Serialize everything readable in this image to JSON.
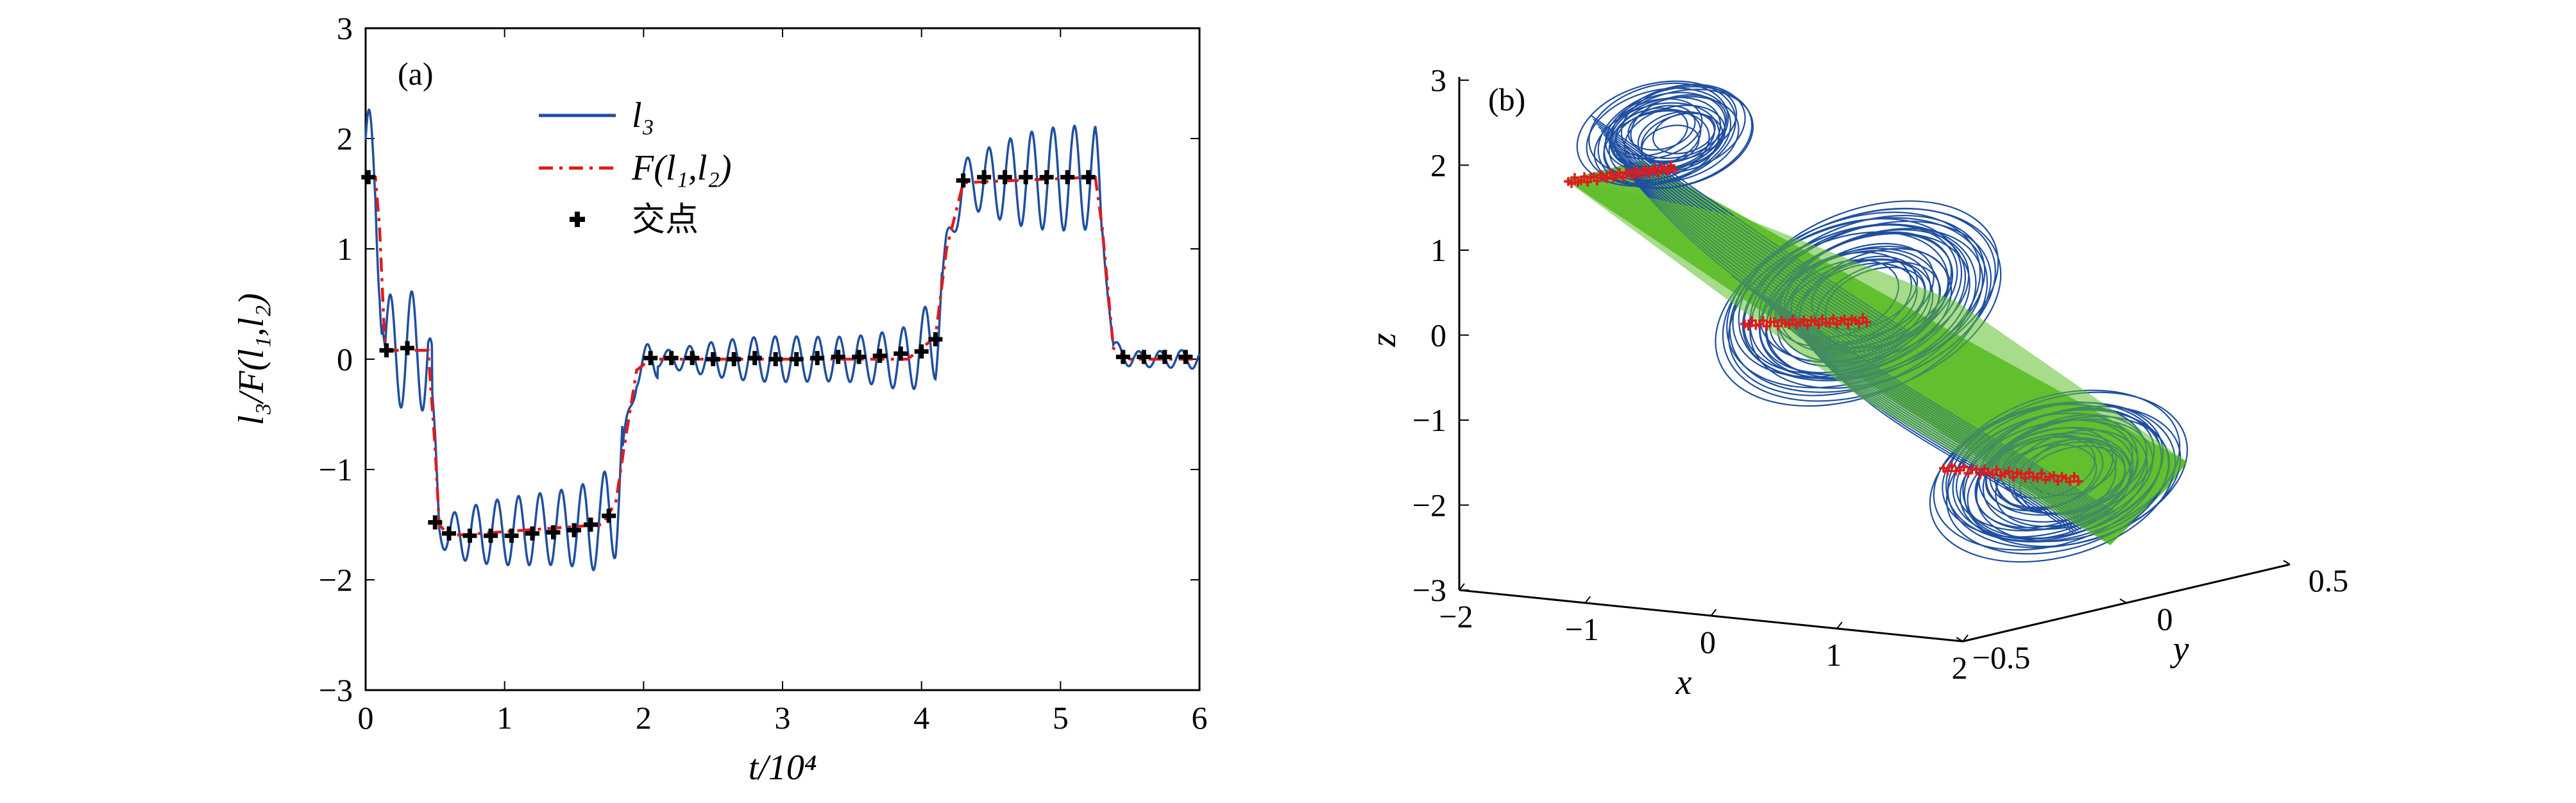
{
  "chart_data": [
    {
      "panel_label": "(a)",
      "type": "line",
      "xlabel": "t/10⁴",
      "ylabel": "l₃/F(l₁,l₂)",
      "xlim": [
        0,
        6
      ],
      "ylim": [
        -3,
        3
      ],
      "x_ticks": [
        "0",
        "1",
        "2",
        "3",
        "4",
        "5",
        "6"
      ],
      "y_ticks": [
        "3",
        "2",
        "1",
        "0",
        "−1",
        "−2",
        "−3"
      ],
      "legend": [
        "l₃",
        "F(l₁,l₂)",
        "交点"
      ],
      "colors": {
        "l3": "#1f4fa0",
        "F": "#e01b1b",
        "points": "#000000"
      },
      "series": [
        {
          "name": "F(l₁,l₂)",
          "style": "dash-dot",
          "x": [
            0,
            0.07,
            0.1,
            0.14,
            0.2,
            0.45,
            0.5,
            0.53,
            0.6,
            1.7,
            1.8,
            1.86,
            1.95,
            2.05,
            3.9,
            4.1,
            4.18,
            4.3,
            5.25,
            5.3,
            5.38,
            5.5,
            6.0
          ],
          "y": [
            1.65,
            1.65,
            1.2,
            0.1,
            0.08,
            0.08,
            -0.8,
            -1.5,
            -1.6,
            -1.5,
            -1.3,
            -0.8,
            -0.1,
            0.0,
            0.0,
            0.2,
            1.0,
            1.6,
            1.65,
            1.2,
            0.1,
            0.0,
            0.0
          ]
        },
        {
          "name": "交点",
          "style": "markers",
          "x": [
            0.02,
            0.15,
            0.3,
            0.5,
            0.6,
            0.75,
            0.9,
            1.05,
            1.2,
            1.35,
            1.5,
            1.62,
            1.75,
            2.05,
            2.2,
            2.35,
            2.5,
            2.65,
            2.8,
            2.95,
            3.1,
            3.25,
            3.4,
            3.55,
            3.7,
            3.85,
            4.0,
            4.1,
            4.3,
            4.45,
            4.6,
            4.75,
            4.9,
            5.05,
            5.2,
            5.45,
            5.6,
            5.75,
            5.9
          ],
          "y": [
            1.65,
            0.08,
            0.1,
            -1.48,
            -1.58,
            -1.6,
            -1.6,
            -1.6,
            -1.58,
            -1.57,
            -1.55,
            -1.5,
            -1.42,
            0.01,
            0.01,
            0.01,
            0.0,
            0.0,
            0.01,
            0.0,
            0.0,
            0.01,
            0.02,
            0.02,
            0.03,
            0.05,
            0.07,
            0.18,
            1.62,
            1.65,
            1.65,
            1.65,
            1.65,
            1.65,
            1.65,
            0.02,
            0.02,
            0.02,
            0.02
          ]
        }
      ]
    },
    {
      "panel_label": "(b)",
      "type": "3d-attractor",
      "xlabel": "x",
      "ylabel": "y",
      "zlabel": "z",
      "z_ticks": [
        "3",
        "2",
        "1",
        "0",
        "−1",
        "−2",
        "−3"
      ],
      "x_ticks": [
        "−2",
        "−1",
        "0",
        "1",
        "2"
      ],
      "y_ticks": [
        "−0.5",
        "0",
        "0.5"
      ],
      "colors": {
        "trajectory": "#1f4fa0",
        "plane": "#5fbf2a",
        "intersections": "#e01b1b"
      }
    }
  ]
}
